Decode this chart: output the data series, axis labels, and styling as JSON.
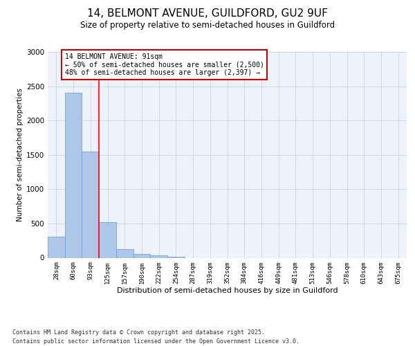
{
  "title_line1": "14, BELMONT AVENUE, GUILDFORD, GU2 9UF",
  "title_line2": "Size of property relative to semi-detached houses in Guildford",
  "xlabel": "Distribution of semi-detached houses by size in Guildford",
  "ylabel": "Number of semi-detached properties",
  "bin_labels": [
    "28sqm",
    "60sqm",
    "93sqm",
    "125sqm",
    "157sqm",
    "190sqm",
    "222sqm",
    "254sqm",
    "287sqm",
    "319sqm",
    "352sqm",
    "384sqm",
    "416sqm",
    "449sqm",
    "481sqm",
    "513sqm",
    "546sqm",
    "578sqm",
    "610sqm",
    "643sqm",
    "675sqm"
  ],
  "bar_values": [
    305,
    2410,
    1545,
    520,
    130,
    60,
    35,
    20,
    0,
    0,
    0,
    0,
    0,
    0,
    0,
    0,
    0,
    0,
    0,
    0,
    0
  ],
  "bar_color": "#aec6e8",
  "bar_edge_color": "#5a9fd4",
  "red_line_x": 2.5,
  "annotation_title": "14 BELMONT AVENUE: 91sqm",
  "annotation_line1": "← 50% of semi-detached houses are smaller (2,500)",
  "annotation_line2": "48% of semi-detached houses are larger (2,397) →",
  "annotation_box_color": "#ffffff",
  "annotation_box_edge_color": "#cc0000",
  "ylim": [
    0,
    3000
  ],
  "yticks": [
    0,
    500,
    1000,
    1500,
    2000,
    2500,
    3000
  ],
  "grid_color": "#c8d4e8",
  "bg_color": "#eef2fa",
  "footnote1": "Contains HM Land Registry data © Crown copyright and database right 2025.",
  "footnote2": "Contains public sector information licensed under the Open Government Licence v3.0."
}
